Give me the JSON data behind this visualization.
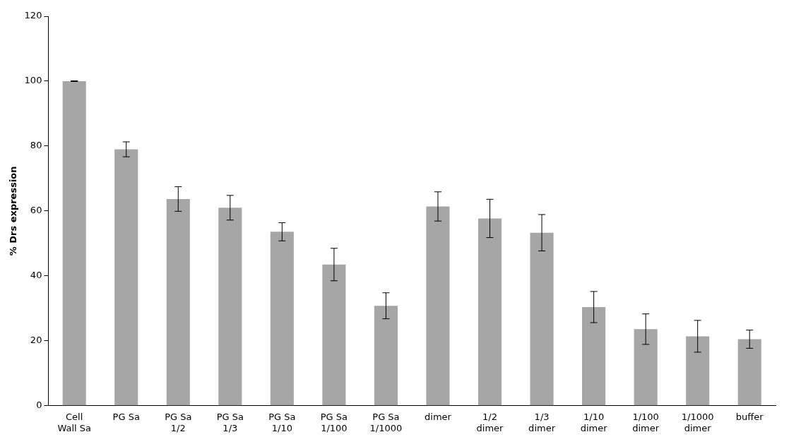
{
  "chart_data": {
    "type": "bar",
    "ylabel": "% Drs expression",
    "categories": [
      "Cell\nWall Sa",
      "PG Sa",
      "PG Sa\n1/2",
      "PG Sa\n1/3",
      "PG Sa\n1/10",
      "PG Sa\n1/100",
      "PG Sa\n1/1000",
      "dimer",
      "1/2\ndimer",
      "1/3\ndimer",
      "1/10\ndimer",
      "1/100\ndimer",
      "1/1000\ndimer",
      "buffer"
    ],
    "values": [
      100,
      79,
      63.7,
      61,
      53.6,
      43.5,
      30.8,
      61.4,
      57.7,
      53.3,
      30.4,
      23.6,
      21.4,
      20.5
    ],
    "errors": [
      0.1,
      2.3,
      3.8,
      3.8,
      2.8,
      5,
      4,
      4.5,
      5.9,
      5.6,
      4.8,
      4.7,
      4.9,
      2.8
    ],
    "color": "#a6a6a6",
    "ylim": [
      0,
      120
    ],
    "yticks": [
      0,
      20,
      40,
      60,
      80,
      100,
      120
    ],
    "grid": false,
    "legend": false
  }
}
